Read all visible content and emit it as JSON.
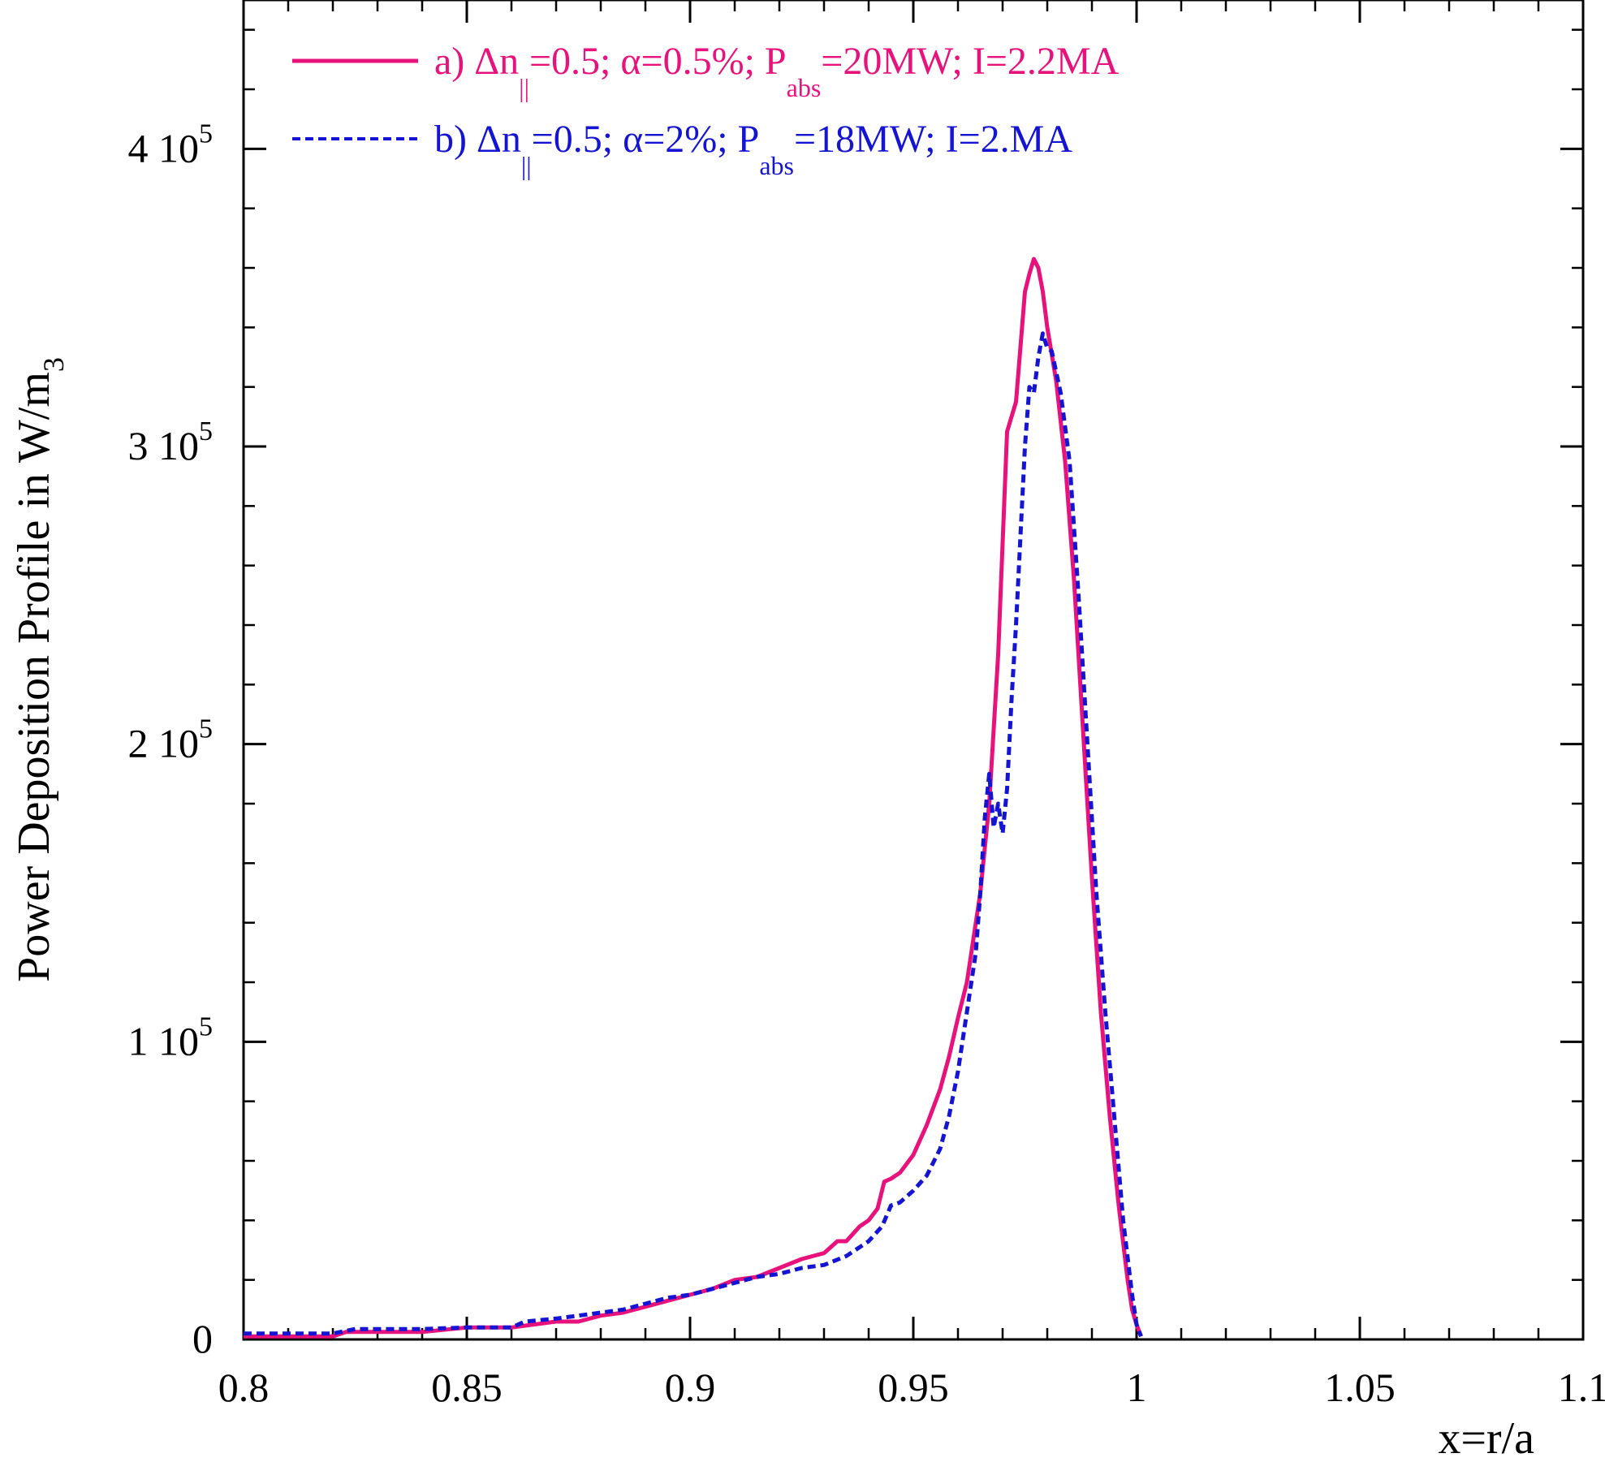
{
  "chart_data": {
    "type": "line",
    "title": "",
    "xlabel": "x=r/a",
    "ylabel": "Power Deposition Profile in W/m",
    "ylabel_sub": "3",
    "xlim": [
      0.8,
      1.1
    ],
    "ylim": [
      0,
      450000
    ],
    "x_ticks": [
      {
        "value": 0.8,
        "label": "0.8"
      },
      {
        "value": 0.85,
        "label": "0.85"
      },
      {
        "value": 0.9,
        "label": "0.9"
      },
      {
        "value": 0.95,
        "label": "0.95"
      },
      {
        "value": 1.0,
        "label": "1"
      },
      {
        "value": 1.05,
        "label": "1.05"
      },
      {
        "value": 1.1,
        "label": "1.1"
      }
    ],
    "x_minor_step": 0.01,
    "y_ticks": [
      {
        "value": 0,
        "mant": "0",
        "exp": ""
      },
      {
        "value": 100000,
        "mant": "1 10",
        "exp": "5"
      },
      {
        "value": 200000,
        "mant": "2 10",
        "exp": "5"
      },
      {
        "value": 300000,
        "mant": "3 10",
        "exp": "5"
      },
      {
        "value": 400000,
        "mant": "4 10",
        "exp": "5"
      }
    ],
    "y_minor_step": 20000,
    "grid": false,
    "legend_position": "top-left",
    "series": [
      {
        "id": "a",
        "color": "#e8127c",
        "style": "solid",
        "legend": [
          {
            "t": "a) Δn"
          },
          {
            "t": "||",
            "s": "sub"
          },
          {
            "t": "=0.5; α=0.5%; P"
          },
          {
            "t": "abs",
            "s": "sub"
          },
          {
            "t": "=20MW;  I=2.2MA"
          }
        ],
        "x": [
          0.8,
          0.81,
          0.82,
          0.823,
          0.83,
          0.84,
          0.85,
          0.86,
          0.87,
          0.875,
          0.88,
          0.885,
          0.89,
          0.895,
          0.9,
          0.905,
          0.91,
          0.915,
          0.92,
          0.925,
          0.93,
          0.933,
          0.935,
          0.938,
          0.94,
          0.942,
          0.9435,
          0.945,
          0.947,
          0.95,
          0.953,
          0.956,
          0.958,
          0.96,
          0.962,
          0.965,
          0.967,
          0.969,
          0.971,
          0.973,
          0.975,
          0.976,
          0.977,
          0.978,
          0.979,
          0.98,
          0.982,
          0.984,
          0.986,
          0.988,
          0.99,
          0.992,
          0.994,
          0.996,
          0.998,
          0.999,
          1.0,
          1.001
        ],
        "y": [
          1000,
          1000,
          1000,
          2500,
          2500,
          2500,
          4000,
          4000,
          6000,
          6000,
          8000,
          9000,
          11000,
          13000,
          15000,
          17000,
          20000,
          21000,
          24000,
          27000,
          29000,
          33000,
          33000,
          38000,
          40000,
          44000,
          53000,
          54000,
          56000,
          62000,
          72000,
          84000,
          95000,
          108000,
          120000,
          150000,
          180000,
          230000,
          305000,
          315000,
          352000,
          358000,
          363000,
          360000,
          352000,
          340000,
          322000,
          295000,
          255000,
          205000,
          155000,
          110000,
          75000,
          45000,
          20000,
          10000,
          5000,
          1000
        ]
      },
      {
        "id": "b",
        "color": "#1414d2",
        "style": "dashed",
        "legend": [
          {
            "t": "b) Δn"
          },
          {
            "t": "||",
            "s": "sub"
          },
          {
            "t": "=0.5; α=2%; P"
          },
          {
            "t": "abs",
            "s": "sub"
          },
          {
            "t": "=18MW;  I=2.MA"
          }
        ],
        "x": [
          0.8,
          0.81,
          0.82,
          0.825,
          0.83,
          0.84,
          0.85,
          0.86,
          0.863,
          0.87,
          0.875,
          0.88,
          0.885,
          0.89,
          0.895,
          0.9,
          0.905,
          0.91,
          0.915,
          0.92,
          0.925,
          0.93,
          0.935,
          0.94,
          0.943,
          0.945,
          0.947,
          0.95,
          0.953,
          0.956,
          0.958,
          0.96,
          0.962,
          0.964,
          0.965,
          0.966,
          0.967,
          0.968,
          0.969,
          0.97,
          0.971,
          0.972,
          0.973,
          0.974,
          0.975,
          0.976,
          0.977,
          0.978,
          0.979,
          0.98,
          0.981,
          0.983,
          0.985,
          0.987,
          0.989,
          0.991,
          0.993,
          0.995,
          0.997,
          0.999,
          1.0,
          1.001
        ],
        "y": [
          2000,
          2000,
          2000,
          3500,
          3500,
          3500,
          4000,
          4000,
          6000,
          7000,
          8000,
          9000,
          10000,
          12000,
          14000,
          15000,
          17000,
          19000,
          21000,
          22000,
          24000,
          25000,
          28000,
          33000,
          38000,
          45000,
          46000,
          50000,
          55000,
          64000,
          75000,
          90000,
          110000,
          130000,
          150000,
          175000,
          190000,
          172000,
          180000,
          170000,
          185000,
          215000,
          240000,
          270000,
          300000,
          320000,
          318000,
          330000,
          338000,
          333000,
          332000,
          318000,
          295000,
          250000,
          200000,
          150000,
          110000,
          75000,
          40000,
          15000,
          5000,
          1000
        ]
      }
    ]
  }
}
